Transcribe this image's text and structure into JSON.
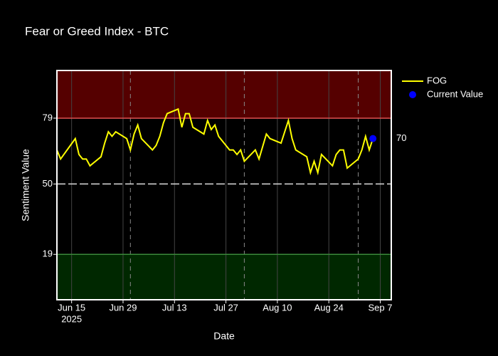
{
  "chart_data": {
    "type": "line",
    "title": "Fear or Greed Index - BTC",
    "x_label": "Date",
    "y_label": "Sentiment Value",
    "xlim": [
      "2025-06-11",
      "2025-09-10"
    ],
    "xticks": [
      {
        "value": "2025-06-15",
        "label": "Jun 15"
      },
      {
        "value": "2025-06-29",
        "label": "Jun 29"
      },
      {
        "value": "2025-07-13",
        "label": "Jul 13"
      },
      {
        "value": "2025-07-27",
        "label": "Jul 27"
      },
      {
        "value": "2025-08-10",
        "label": "Aug 10"
      },
      {
        "value": "2025-08-24",
        "label": "Aug 24"
      },
      {
        "value": "2025-09-07",
        "label": "Sep 7"
      }
    ],
    "x_year_label": "2025",
    "ylim": [
      -1,
      100
    ],
    "yticks": [
      19,
      50,
      79
    ],
    "grid": true,
    "bands": [
      {
        "y0": 79,
        "y1": 100,
        "fill": "#550000",
        "line": "#e05050"
      },
      {
        "y0": -1,
        "y1": 19,
        "fill": "#002800",
        "line": "#3a8a3a"
      }
    ],
    "midline": 50,
    "vlines": [
      "2025-07-01",
      "2025-08-01",
      "2025-09-01"
    ],
    "legend": "top-right",
    "series": [
      {
        "name": "FOG",
        "color": "#ffff00",
        "x": [
          "2025-06-11",
          "2025-06-12",
          "2025-06-16",
          "2025-06-17",
          "2025-06-18",
          "2025-06-19",
          "2025-06-20",
          "2025-06-23",
          "2025-06-24",
          "2025-06-25",
          "2025-06-26",
          "2025-06-27",
          "2025-06-30",
          "2025-07-01",
          "2025-07-02",
          "2025-07-03",
          "2025-07-04",
          "2025-07-07",
          "2025-07-08",
          "2025-07-09",
          "2025-07-10",
          "2025-07-11",
          "2025-07-14",
          "2025-07-15",
          "2025-07-16",
          "2025-07-17",
          "2025-07-18",
          "2025-07-21",
          "2025-07-22",
          "2025-07-23",
          "2025-07-24",
          "2025-07-25",
          "2025-07-28",
          "2025-07-29",
          "2025-07-30",
          "2025-07-31",
          "2025-08-01",
          "2025-08-04",
          "2025-08-05",
          "2025-08-07",
          "2025-08-08",
          "2025-08-11",
          "2025-08-12",
          "2025-08-13",
          "2025-08-14",
          "2025-08-15",
          "2025-08-18",
          "2025-08-19",
          "2025-08-20",
          "2025-08-21",
          "2025-08-22",
          "2025-08-25",
          "2025-08-26",
          "2025-08-27",
          "2025-08-28",
          "2025-08-29",
          "2025-09-01",
          "2025-09-02",
          "2025-09-03",
          "2025-09-04",
          "2025-09-05"
        ],
        "values": [
          65,
          61,
          70,
          63,
          61,
          61,
          58,
          62,
          68,
          73,
          71,
          73,
          70,
          65,
          72,
          76,
          70,
          65,
          67,
          71,
          77,
          81,
          83,
          75,
          81,
          81,
          75,
          72,
          78,
          74,
          76,
          71,
          65,
          65,
          63,
          65,
          60,
          65,
          61,
          72,
          70,
          68,
          73,
          78,
          70,
          65,
          62,
          55,
          60,
          55,
          63,
          58,
          63,
          65,
          65,
          57,
          61,
          65,
          71,
          65,
          70
        ]
      },
      {
        "name": "Current Value",
        "color": "#0000ff",
        "x": [
          "2025-09-05"
        ],
        "values": [
          70
        ]
      }
    ]
  }
}
